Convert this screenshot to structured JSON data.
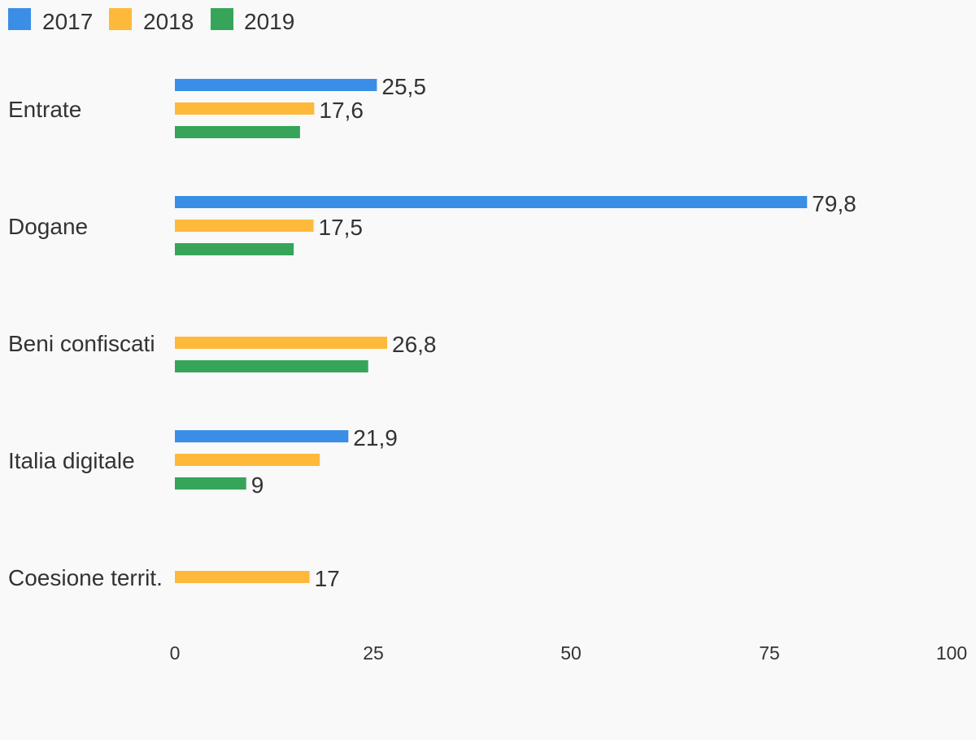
{
  "chart_data": {
    "type": "bar",
    "orientation": "horizontal",
    "title": "",
    "xlabel": "",
    "ylabel": "",
    "legend_position": "top-left",
    "grid": false,
    "xlim": [
      0,
      100
    ],
    "x_ticks": [
      "0",
      "25",
      "50",
      "75",
      "100"
    ],
    "categories": [
      "Entrate",
      "Dogane",
      "Beni confiscati",
      "Italia digitale",
      "Coesione territ."
    ],
    "series": [
      {
        "name": "2017",
        "color": "#3a8ee6",
        "values": [
          25.5,
          79.8,
          null,
          21.9,
          null
        ],
        "labels": [
          "25,5",
          "79,8",
          "",
          "21,9",
          ""
        ]
      },
      {
        "name": "2018",
        "color": "#ffb93a",
        "values": [
          17.6,
          17.5,
          26.8,
          18.3,
          17
        ],
        "labels": [
          "17,6",
          "17,5",
          "26,8",
          "",
          "17"
        ]
      },
      {
        "name": "2019",
        "color": "#36a55a",
        "values": [
          15.8,
          15,
          24.4,
          9,
          null
        ],
        "labels": [
          "",
          "",
          "",
          "9",
          ""
        ]
      }
    ]
  }
}
